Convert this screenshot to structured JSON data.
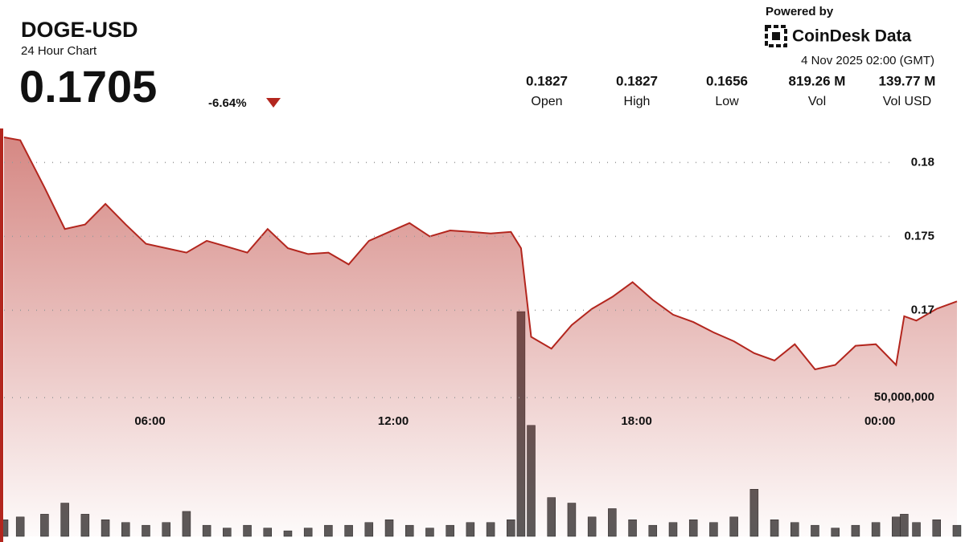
{
  "header": {
    "symbol": "DOGE-USD",
    "subtitle": "24 Hour Chart",
    "price": "0.1705",
    "change": "-6.64%",
    "powered_by": "Powered by",
    "brand": "CoinDesk Data",
    "timestamp": "4 Nov 2025 02:00 (GMT)",
    "stats": [
      {
        "value": "0.1827",
        "label": "Open"
      },
      {
        "value": "0.1827",
        "label": "High"
      },
      {
        "value": "0.1656",
        "label": "Low"
      },
      {
        "value": "819.26 M",
        "label": "Vol"
      },
      {
        "value": "139.77 M",
        "label": "Vol USD"
      }
    ]
  },
  "chart_data": {
    "type": "line",
    "x": [
      2.4,
      2.8,
      3.4,
      3.9,
      4.4,
      4.9,
      5.4,
      5.9,
      6.4,
      6.9,
      7.4,
      7.9,
      8.4,
      8.9,
      9.4,
      9.9,
      10.4,
      10.9,
      11.4,
      11.9,
      12.4,
      12.9,
      13.4,
      13.9,
      14.4,
      14.9,
      15.15,
      15.4,
      15.9,
      16.4,
      16.9,
      17.4,
      17.9,
      18.4,
      18.9,
      19.4,
      19.9,
      20.4,
      20.9,
      21.4,
      21.9,
      22.4,
      22.9,
      23.4,
      23.9,
      24.4,
      24.6,
      24.9,
      25.4,
      25.9
    ],
    "xlim": [
      2.4,
      26.0
    ],
    "xticks": [
      {
        "value": 6,
        "label": "06:00"
      },
      {
        "value": 12,
        "label": "12:00"
      },
      {
        "value": 18,
        "label": "18:00"
      },
      {
        "value": 24,
        "label": "00:00"
      }
    ],
    "ylim": [
      0.1547,
      0.1823
    ],
    "yticks": [
      0.17,
      0.175,
      0.18
    ],
    "y2lim": [
      0,
      147000000
    ],
    "y2ticks": [
      {
        "value": 50000000,
        "label": "50,000,000"
      }
    ],
    "grid": true,
    "series": [
      {
        "color": "#b3261e",
        "values": [
          0.1817,
          0.1815,
          0.1783,
          0.1755,
          0.1758,
          0.1772,
          0.1758,
          0.1745,
          0.1742,
          0.1739,
          0.1747,
          0.1743,
          0.1739,
          0.1755,
          0.1742,
          0.1738,
          0.1739,
          0.1731,
          0.1747,
          0.1753,
          0.1759,
          0.175,
          0.1754,
          0.1753,
          0.1752,
          0.1753,
          0.1742,
          0.1682,
          0.1674,
          0.169,
          0.1701,
          0.1709,
          0.1719,
          0.1707,
          0.1697,
          0.1692,
          0.1685,
          0.1679,
          0.1671,
          0.1666,
          0.1677,
          0.166,
          0.1663,
          0.1676,
          0.1677,
          0.1663,
          0.1696,
          0.1693,
          0.1701,
          0.1706
        ]
      },
      {
        "type": "bar",
        "axis": "y2",
        "color": "#5a5a5a",
        "values": [
          6000000,
          7000000,
          8000000,
          12000000,
          8000000,
          6000000,
          5000000,
          4000000,
          5000000,
          9000000,
          4000000,
          3000000,
          4000000,
          3000000,
          2000000,
          3000000,
          4000000,
          4000000,
          5000000,
          6000000,
          4000000,
          3000000,
          4000000,
          5000000,
          5000000,
          6000000,
          81000000,
          40000000,
          14000000,
          12000000,
          7000000,
          10000000,
          6000000,
          4000000,
          5000000,
          6000000,
          5000000,
          7000000,
          17000000,
          6000000,
          5000000,
          4000000,
          3000000,
          4000000,
          5000000,
          7000000,
          8000000,
          5000000,
          6000000,
          4000000
        ]
      }
    ]
  }
}
